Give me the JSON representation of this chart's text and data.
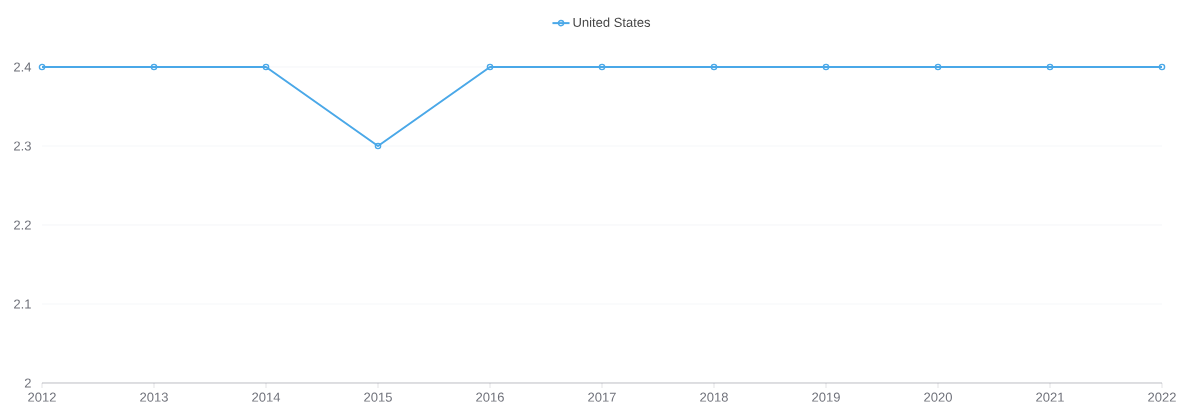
{
  "chart_data": {
    "type": "line",
    "categories": [
      "2012",
      "2013",
      "2014",
      "2015",
      "2016",
      "2017",
      "2018",
      "2019",
      "2020",
      "2021",
      "2022"
    ],
    "series": [
      {
        "name": "United States",
        "color": "#4aa8e8",
        "values": [
          2.4,
          2.4,
          2.4,
          2.3,
          2.4,
          2.4,
          2.4,
          2.4,
          2.4,
          2.4,
          2.4
        ]
      }
    ],
    "ylim": [
      2,
      2.4
    ],
    "yticks": [
      2,
      2.1,
      2.2,
      2.3,
      2.4
    ],
    "grid": "y",
    "legend": "top",
    "marker": "circle",
    "line_style": "solid"
  }
}
